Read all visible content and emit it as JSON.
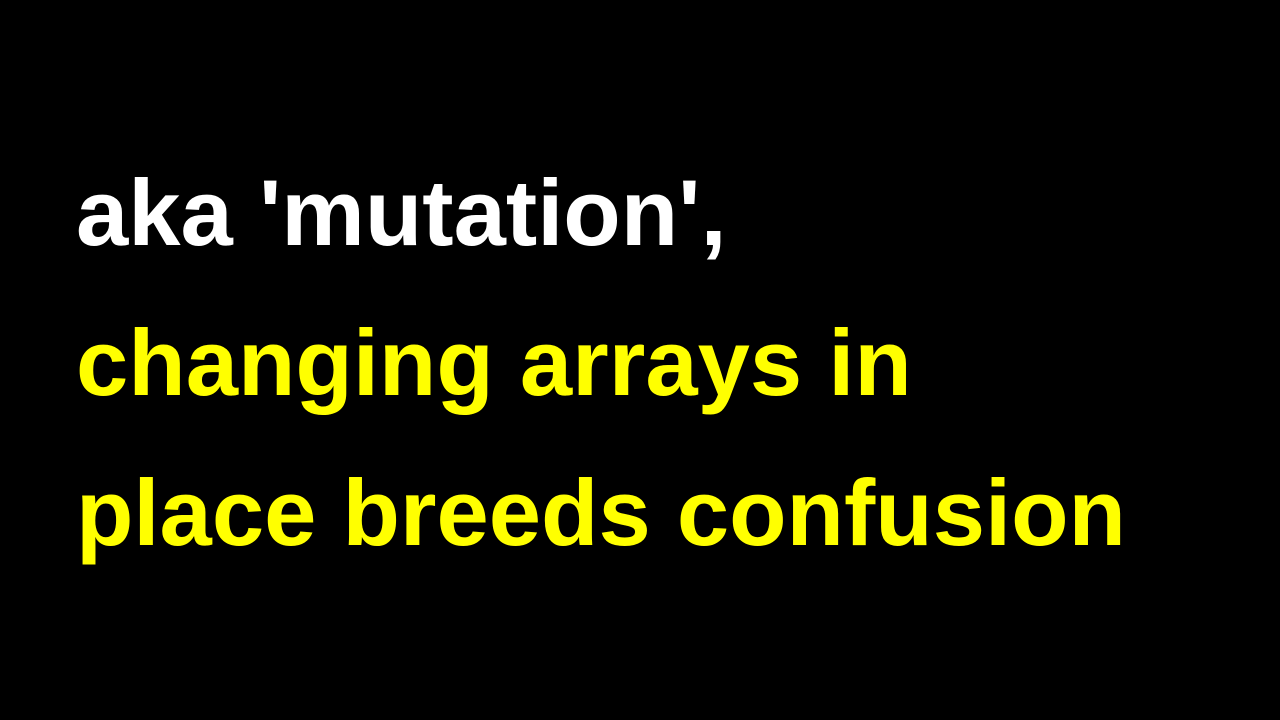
{
  "slide": {
    "lines": [
      {
        "text": "aka 'mutation',",
        "color": "#ffffff"
      },
      {
        "text": "changing arrays in",
        "color": "#ffff00"
      },
      {
        "text": "place breeds confusion",
        "color": "#ffff00"
      }
    ],
    "background_color": "#000000"
  }
}
